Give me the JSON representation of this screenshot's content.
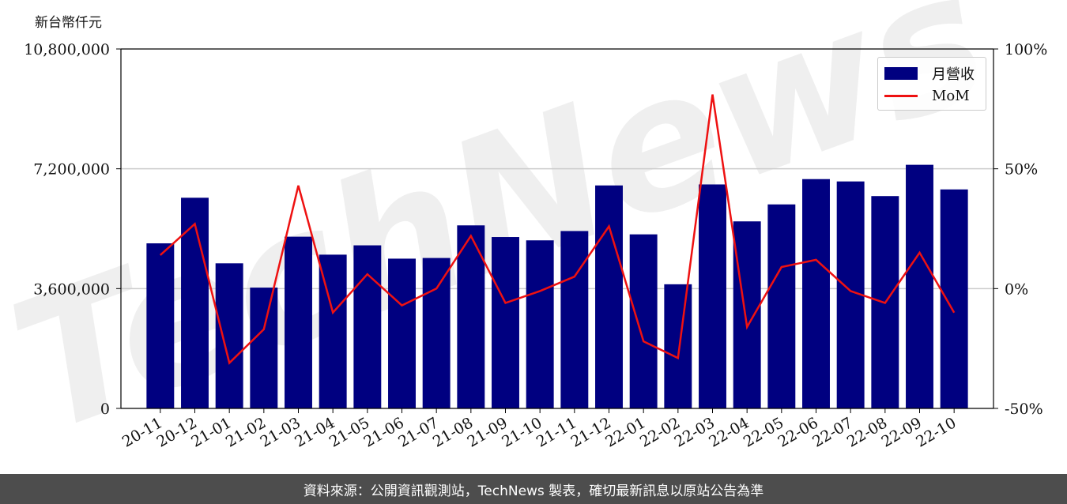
{
  "unit_label": "新台幣仟元",
  "footer_text": "資料來源：公開資訊觀測站，TechNews 製表，確切最新訊息以原站公告為準",
  "watermark_text": "TechNews",
  "colors": {
    "bar": "#000080",
    "line": "#ee1111",
    "grid": "#cccccc",
    "footer_bg": "#4d4d4d"
  },
  "chart_data": {
    "type": "bar",
    "categories": [
      "20-11",
      "20-12",
      "21-01",
      "21-02",
      "21-03",
      "21-04",
      "21-05",
      "21-06",
      "21-07",
      "21-08",
      "21-09",
      "21-10",
      "21-11",
      "21-12",
      "22-01",
      "22-02",
      "22-03",
      "22-04",
      "22-05",
      "22-06",
      "22-07",
      "22-08",
      "22-09",
      "22-10"
    ],
    "series": [
      {
        "name": "月營收",
        "type": "bar",
        "axis": "left",
        "values": [
          4960000,
          6330000,
          4360000,
          3630000,
          5160000,
          4620000,
          4900000,
          4500000,
          4520000,
          5500000,
          5150000,
          5050000,
          5330000,
          6700000,
          5230000,
          3730000,
          6730000,
          5620000,
          6130000,
          6890000,
          6820000,
          6380000,
          7320000,
          6580000
        ]
      },
      {
        "name": "MoM",
        "type": "line",
        "axis": "right",
        "values": [
          14,
          27,
          -31,
          -17,
          43,
          -10,
          6,
          -7,
          0,
          22,
          -6,
          -1,
          5,
          26,
          -22,
          -29,
          81,
          -16,
          9,
          12,
          -1,
          -6,
          15,
          -10
        ]
      }
    ],
    "left_axis": {
      "ylim": [
        0,
        10800000
      ],
      "ticks": [
        0,
        3600000,
        7200000,
        10800000
      ],
      "tick_labels": [
        "0",
        "3,600,000",
        "7,200,000",
        "10,800,000"
      ]
    },
    "right_axis": {
      "ylim": [
        -50,
        100
      ],
      "ticks": [
        -50,
        0,
        50,
        100
      ],
      "tick_labels": [
        "-50%",
        "0%",
        "50%",
        "100%"
      ]
    },
    "grid": "horizontal",
    "legend_position": "top-right"
  }
}
